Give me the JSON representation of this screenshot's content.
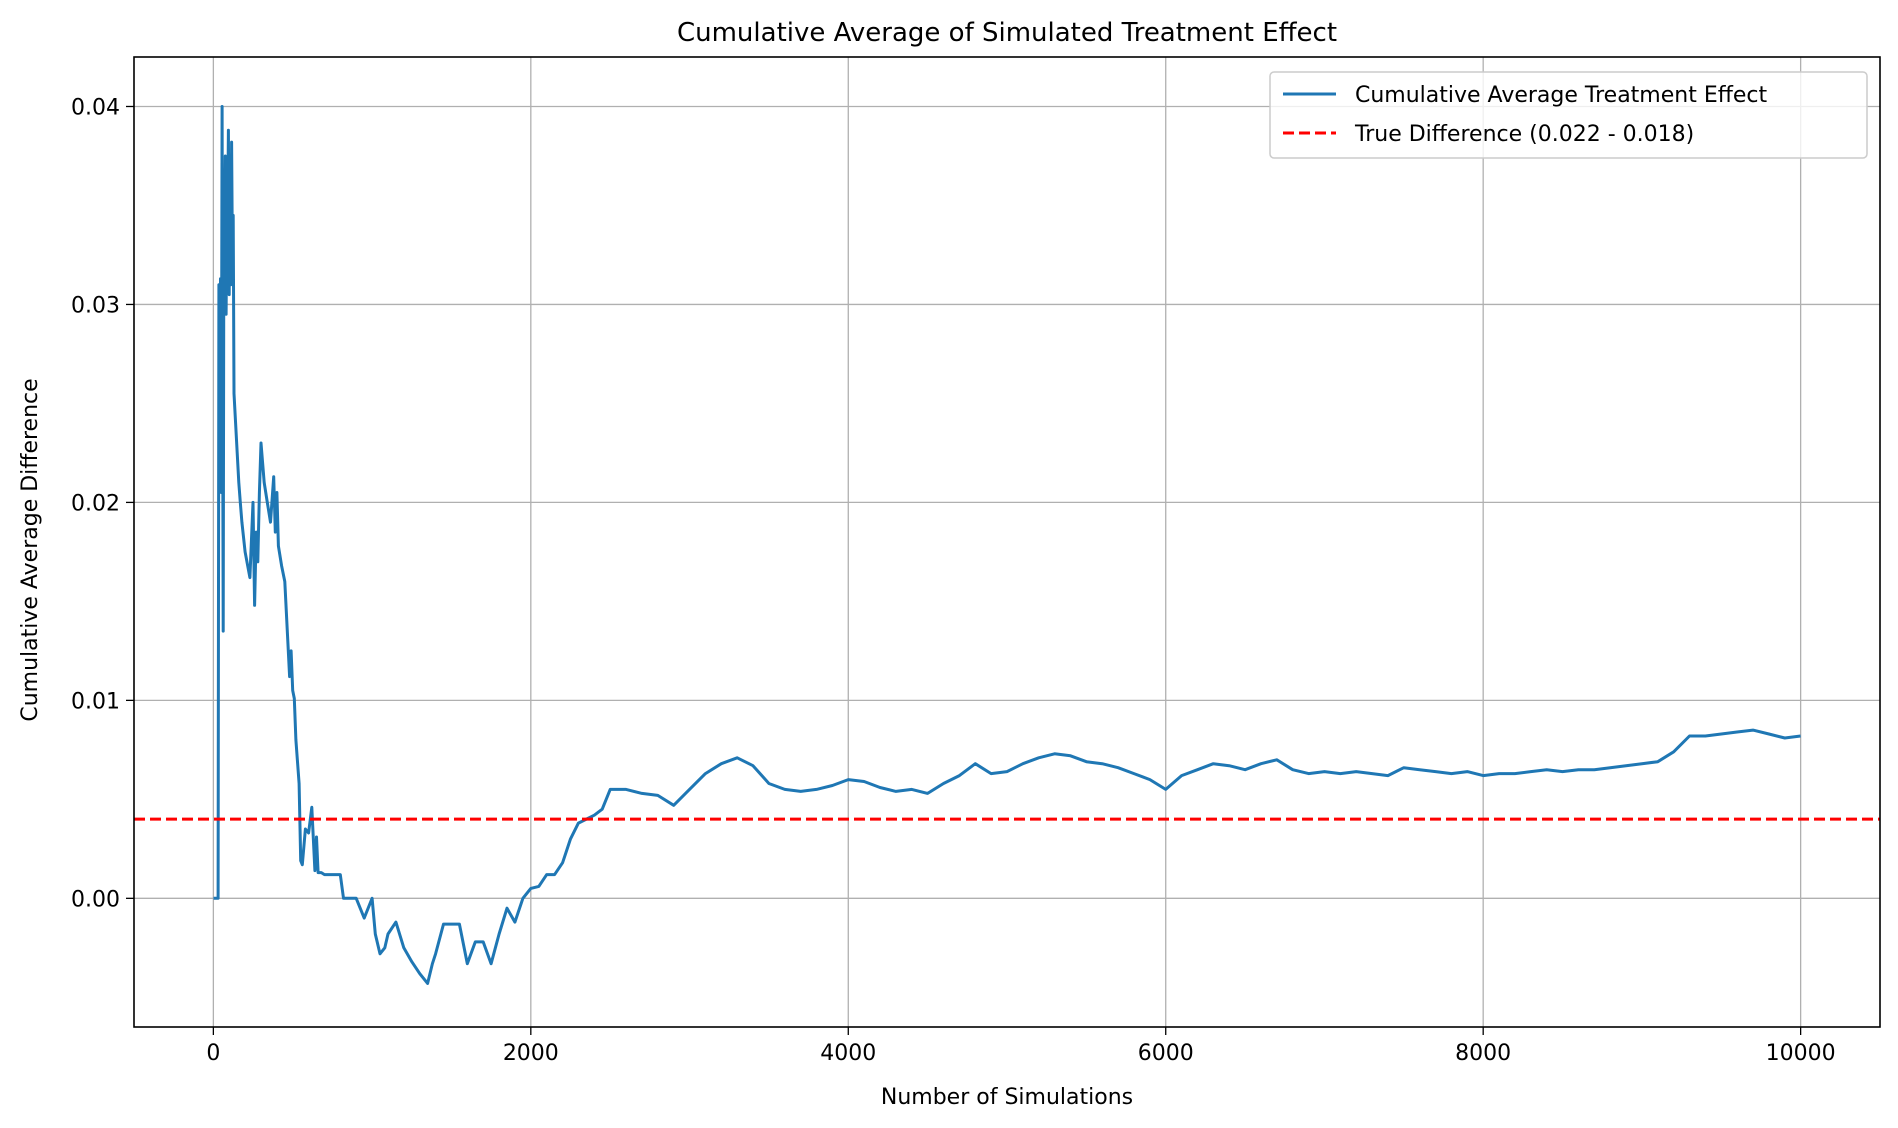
{
  "chart_data": {
    "type": "line",
    "title": "Cumulative Average of Simulated Treatment Effect",
    "xlabel": "Number of Simulations",
    "ylabel": "Cumulative Average Difference",
    "xlim": [
      -500,
      10500
    ],
    "ylim": [
      -0.0065,
      0.0425
    ],
    "xticks": [
      0,
      2000,
      4000,
      6000,
      8000,
      10000
    ],
    "xtick_labels": [
      "0",
      "2000",
      "4000",
      "6000",
      "8000",
      "10000"
    ],
    "yticks": [
      0.0,
      0.01,
      0.02,
      0.03,
      0.04
    ],
    "ytick_labels": [
      "0.00",
      "0.01",
      "0.02",
      "0.03",
      "0.04"
    ],
    "grid": true,
    "legend_position": "top-right",
    "series": [
      {
        "name": "Cumulative Average Treatment Effect",
        "color": "#1f77b4",
        "style": "solid",
        "x": [
          1,
          20,
          30,
          35,
          40,
          45,
          50,
          55,
          58,
          62,
          66,
          70,
          75,
          80,
          85,
          90,
          95,
          100,
          105,
          110,
          115,
          120,
          125,
          130,
          140,
          150,
          160,
          170,
          180,
          200,
          230,
          250,
          260,
          270,
          280,
          290,
          300,
          310,
          320,
          340,
          360,
          380,
          390,
          400,
          410,
          430,
          450,
          480,
          490,
          500,
          510,
          520,
          540,
          550,
          560,
          580,
          600,
          620,
          640,
          650,
          660,
          680,
          700,
          750,
          800,
          820,
          850,
          900,
          950,
          1000,
          1020,
          1050,
          1080,
          1100,
          1150,
          1200,
          1250,
          1300,
          1350,
          1380,
          1400,
          1450,
          1500,
          1550,
          1600,
          1650,
          1700,
          1750,
          1800,
          1850,
          1900,
          1950,
          2000,
          2050,
          2100,
          2150,
          2200,
          2250,
          2300,
          2350,
          2400,
          2450,
          2500,
          2520,
          2600,
          2700,
          2800,
          2900,
          3000,
          3100,
          3200,
          3300,
          3400,
          3500,
          3600,
          3700,
          3800,
          3900,
          4000,
          4100,
          4200,
          4300,
          4400,
          4500,
          4600,
          4700,
          4800,
          4900,
          5000,
          5100,
          5200,
          5300,
          5400,
          5500,
          5600,
          5700,
          5800,
          5900,
          6000,
          6100,
          6200,
          6300,
          6400,
          6500,
          6600,
          6700,
          6800,
          6900,
          7000,
          7100,
          7200,
          7300,
          7400,
          7500,
          7600,
          7700,
          7800,
          7900,
          8000,
          8100,
          8200,
          8300,
          8400,
          8500,
          8600,
          8700,
          8800,
          8900,
          9000,
          9100,
          9200,
          9300,
          9400,
          9500,
          9600,
          9700,
          9800,
          9900,
          10000
        ],
        "y": [
          0.0,
          0.0,
          0.0,
          0.031,
          0.0225,
          0.0313,
          0.0205,
          0.04,
          0.0255,
          0.0135,
          0.032,
          0.0313,
          0.0375,
          0.0295,
          0.0355,
          0.0335,
          0.0388,
          0.0305,
          0.037,
          0.031,
          0.0382,
          0.0325,
          0.0345,
          0.0255,
          0.024,
          0.0225,
          0.021,
          0.02,
          0.019,
          0.0175,
          0.0162,
          0.02,
          0.0148,
          0.0185,
          0.017,
          0.0205,
          0.023,
          0.022,
          0.021,
          0.02,
          0.019,
          0.0213,
          0.0185,
          0.0205,
          0.0178,
          0.0168,
          0.016,
          0.0112,
          0.0125,
          0.0105,
          0.0101,
          0.008,
          0.0058,
          0.0019,
          0.0017,
          0.0035,
          0.0033,
          0.0046,
          0.0014,
          0.0031,
          0.0013,
          0.0013,
          0.0012,
          0.0012,
          0.0012,
          0.0,
          0.0,
          0.0,
          -0.001,
          0.0,
          -0.0018,
          -0.0028,
          -0.0025,
          -0.0018,
          -0.0012,
          -0.0025,
          -0.0032,
          -0.0038,
          -0.0043,
          -0.0033,
          -0.0028,
          -0.0013,
          -0.0013,
          -0.0013,
          -0.0033,
          -0.0022,
          -0.0022,
          -0.0033,
          -0.0018,
          -0.0005,
          -0.0012,
          0.0,
          0.0005,
          0.0006,
          0.0012,
          0.0012,
          0.0018,
          0.003,
          0.0038,
          0.004,
          0.0042,
          0.0045,
          0.0055,
          0.0055,
          0.0055,
          0.0053,
          0.0052,
          0.0047,
          0.0055,
          0.0063,
          0.0068,
          0.0071,
          0.0067,
          0.0058,
          0.0055,
          0.0054,
          0.0055,
          0.0057,
          0.006,
          0.0059,
          0.0056,
          0.0054,
          0.0055,
          0.0053,
          0.0058,
          0.0062,
          0.0068,
          0.0063,
          0.0064,
          0.0068,
          0.0071,
          0.0073,
          0.0072,
          0.0069,
          0.0068,
          0.0066,
          0.0063,
          0.006,
          0.0055,
          0.0062,
          0.0065,
          0.0068,
          0.0067,
          0.0065,
          0.0068,
          0.007,
          0.0065,
          0.0063,
          0.0064,
          0.0063,
          0.0064,
          0.0063,
          0.0062,
          0.0066,
          0.0065,
          0.0064,
          0.0063,
          0.0064,
          0.0062,
          0.0063,
          0.0063,
          0.0064,
          0.0065,
          0.0064,
          0.0065,
          0.0065,
          0.0066,
          0.0067,
          0.0068,
          0.0069,
          0.0074,
          0.0082,
          0.0082,
          0.0083,
          0.0084,
          0.0085,
          0.0083,
          0.0081,
          0.0082
        ]
      },
      {
        "name": "True Difference (0.022 - 0.018)",
        "color": "#ff0000",
        "style": "dashed",
        "hline": 0.004
      }
    ]
  }
}
